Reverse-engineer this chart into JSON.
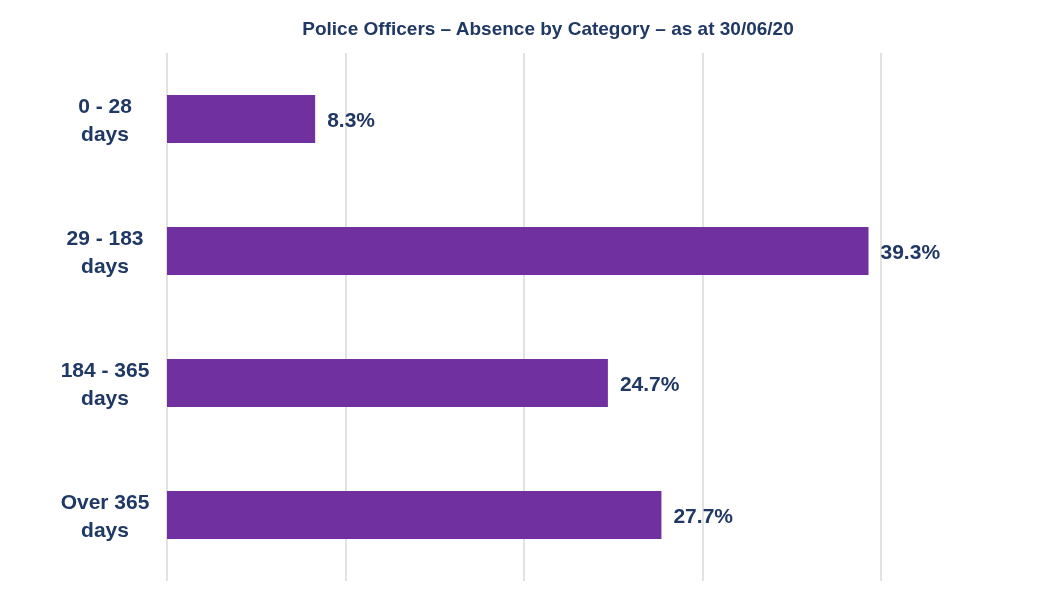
{
  "chart_data": {
    "type": "bar",
    "orientation": "horizontal",
    "title": "Police Officers – Absence by Category – as at 30/06/20",
    "categories": [
      "0 - 28 days",
      "29 - 183 days",
      "184 - 365 days",
      "Over 365 days"
    ],
    "values": [
      8.3,
      39.3,
      24.7,
      27.7
    ],
    "value_labels": [
      "8.3%",
      "39.3%",
      "24.7%",
      "27.7%"
    ],
    "color": "#7030a0",
    "xlim": [
      0,
      40
    ],
    "xticks": [
      {
        "value": 0,
        "label": null
      },
      {
        "value": 10,
        "label": null
      },
      {
        "value": 20,
        "label": null
      },
      {
        "value": 30,
        "label": null
      },
      {
        "value": 40,
        "label": null
      }
    ],
    "tick_labels": "y",
    "grid": "x"
  }
}
